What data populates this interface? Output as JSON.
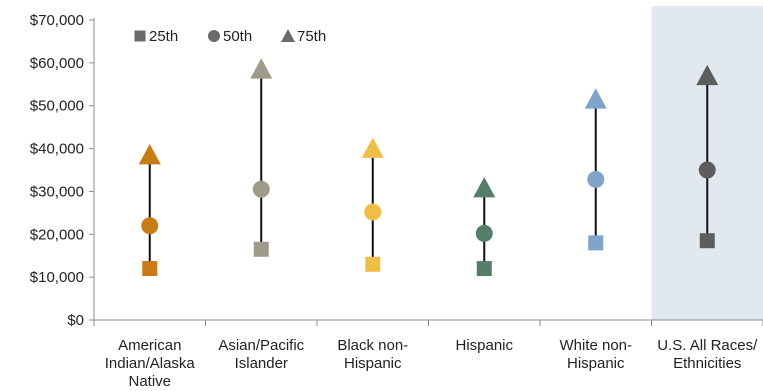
{
  "chart_data": {
    "type": "scatter",
    "categories": [
      "American Indian/Alaska Native",
      "Asian/Pacific Islander",
      "Black non-Hispanic",
      "Hispanic",
      "White non-Hispanic",
      "U.S. All Races/ Ethnicities"
    ],
    "category_lines": [
      [
        "American",
        "Indian/Alaska",
        "Native"
      ],
      [
        "Asian/Pacific",
        "Islander"
      ],
      [
        "Black non-",
        "Hispanic"
      ],
      [
        "Hispanic"
      ],
      [
        "White non-",
        "Hispanic"
      ],
      [
        "U.S. All Races/",
        "Ethnicities"
      ]
    ],
    "series": [
      {
        "name": "25th",
        "marker": "square",
        "values": [
          12000,
          16500,
          13000,
          12000,
          18000,
          18500
        ]
      },
      {
        "name": "50th",
        "marker": "circle",
        "values": [
          22000,
          30500,
          25200,
          20200,
          32800,
          35000
        ]
      },
      {
        "name": "75th",
        "marker": "triangle",
        "values": [
          38500,
          58500,
          40000,
          30800,
          51500,
          57000
        ]
      }
    ],
    "colors": [
      "#c97a13",
      "#a09a8a",
      "#f0bd45",
      "#547e68",
      "#7fa4c9",
      "#5d5d5d"
    ],
    "legend_color": "#6b6b6b",
    "highlight_category": 5,
    "highlight_color": "#e1e8f0",
    "y_ticks": [
      "$0",
      "$10,000",
      "$20,000",
      "$30,000",
      "$40,000",
      "$50,000",
      "$60,000",
      "$70,000"
    ],
    "ylim": [
      0,
      70000
    ],
    "legend_position": "top-left",
    "grid": false,
    "title": "",
    "xlabel": "",
    "ylabel": ""
  }
}
